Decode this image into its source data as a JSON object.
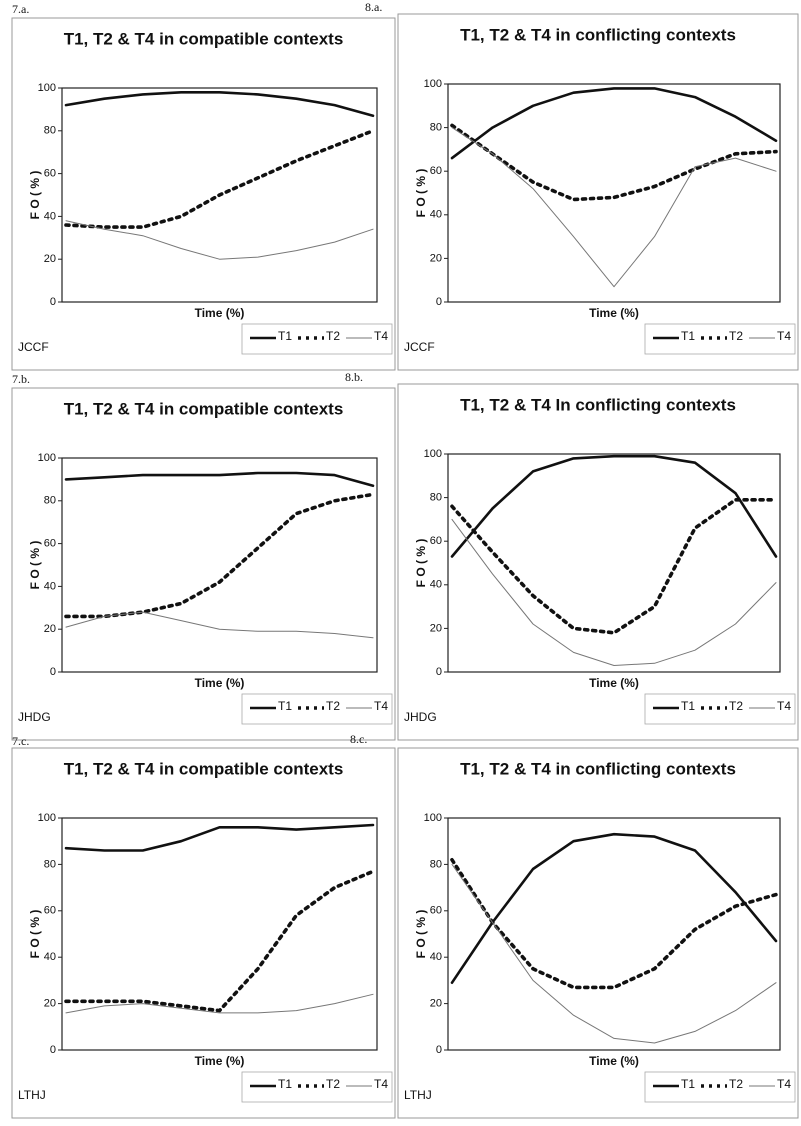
{
  "chart_data": [
    {
      "type": "line",
      "panel": "7.a.",
      "title": "T1, T2 & T4 in compatible contexts",
      "ylabel": "F O ( % )",
      "xlabel": "Time (%)",
      "annotation": "JCCF",
      "categories": [
        null,
        null,
        null,
        null,
        null,
        null,
        null,
        null,
        null
      ],
      "ylim": [
        0,
        100
      ],
      "yticks": [
        0,
        20,
        40,
        60,
        80,
        100
      ],
      "series": [
        {
          "name": "T1",
          "color": "#111111",
          "values": [
            92,
            95,
            97,
            98,
            98,
            97,
            95,
            92,
            87
          ]
        },
        {
          "name": "T2",
          "color": "#111111",
          "values": [
            36,
            35,
            35,
            40,
            50,
            58,
            66,
            73,
            80
          ]
        },
        {
          "name": "T4",
          "color": "#777777",
          "values": [
            38,
            34,
            31,
            25,
            20,
            21,
            24,
            28,
            34
          ]
        }
      ]
    },
    {
      "type": "line",
      "panel": "8.a.",
      "title": "T1, T2 & T4 in conflicting contexts",
      "ylabel": "F O ( % )",
      "xlabel": "Time (%)",
      "annotation": "JCCF",
      "categories": [
        null,
        null,
        null,
        null,
        null,
        null,
        null,
        null,
        null
      ],
      "ylim": [
        0,
        100
      ],
      "yticks": [
        0,
        20,
        40,
        60,
        80,
        100
      ],
      "series": [
        {
          "name": "T1",
          "color": "#111111",
          "values": [
            66,
            80,
            90,
            96,
            98,
            98,
            94,
            85,
            74
          ]
        },
        {
          "name": "T2",
          "color": "#111111",
          "values": [
            81,
            68,
            55,
            47,
            48,
            53,
            61,
            68,
            69
          ]
        },
        {
          "name": "T4",
          "color": "#777777",
          "values": [
            80,
            68,
            52,
            30,
            7,
            30,
            62,
            66,
            60
          ]
        }
      ]
    },
    {
      "type": "line",
      "panel": "7.b.",
      "title": "T1, T2 & T4 in compatible contexts",
      "ylabel": "F O ( % )",
      "xlabel": "Time (%)",
      "annotation": "JHDG",
      "categories": [
        null,
        null,
        null,
        null,
        null,
        null,
        null,
        null,
        null
      ],
      "ylim": [
        0,
        100
      ],
      "yticks": [
        0,
        20,
        40,
        60,
        80,
        100
      ],
      "series": [
        {
          "name": "T1",
          "color": "#111111",
          "values": [
            90,
            91,
            92,
            92,
            92,
            93,
            93,
            92,
            87
          ]
        },
        {
          "name": "T2",
          "color": "#111111",
          "values": [
            26,
            26,
            28,
            32,
            42,
            58,
            74,
            80,
            83
          ]
        },
        {
          "name": "T4",
          "color": "#777777",
          "values": [
            21,
            26,
            28,
            24,
            20,
            19,
            19,
            18,
            16
          ]
        }
      ]
    },
    {
      "type": "line",
      "panel": "8.b.",
      "title": "T1, T2 & T4 In conflicting contexts",
      "ylabel": "F O ( % )",
      "xlabel": "Time (%)",
      "annotation": "JHDG",
      "categories": [
        null,
        null,
        null,
        null,
        null,
        null,
        null,
        null,
        null
      ],
      "ylim": [
        0,
        100
      ],
      "yticks": [
        0,
        20,
        40,
        60,
        80,
        100
      ],
      "series": [
        {
          "name": "T1",
          "color": "#111111",
          "values": [
            53,
            75,
            92,
            98,
            99,
            99,
            96,
            82,
            53
          ]
        },
        {
          "name": "T2",
          "color": "#111111",
          "values": [
            76,
            55,
            35,
            20,
            18,
            30,
            66,
            79,
            79
          ]
        },
        {
          "name": "T4",
          "color": "#777777",
          "values": [
            70,
            45,
            22,
            9,
            3,
            4,
            10,
            22,
            41
          ]
        }
      ]
    },
    {
      "type": "line",
      "panel": "7.c.",
      "title": "T1, T2 & T4 in compatible contexts",
      "ylabel": "F O ( % )",
      "xlabel": "Time (%)",
      "annotation": "LTHJ",
      "categories": [
        null,
        null,
        null,
        null,
        null,
        null,
        null,
        null,
        null
      ],
      "ylim": [
        0,
        100
      ],
      "yticks": [
        0,
        20,
        40,
        60,
        80,
        100
      ],
      "series": [
        {
          "name": "T1",
          "color": "#111111",
          "values": [
            87,
            86,
            86,
            90,
            96,
            96,
            95,
            96,
            97
          ]
        },
        {
          "name": "T2",
          "color": "#111111",
          "values": [
            21,
            21,
            21,
            19,
            17,
            35,
            58,
            70,
            77
          ]
        },
        {
          "name": "T4",
          "color": "#777777",
          "values": [
            16,
            19,
            20,
            18,
            16,
            16,
            17,
            20,
            24
          ]
        }
      ]
    },
    {
      "type": "line",
      "panel": "8.c.",
      "title": "T1, T2 & T4 in conflicting contexts",
      "ylabel": "F O ( % )",
      "xlabel": "Time (%)",
      "annotation": "LTHJ",
      "categories": [
        null,
        null,
        null,
        null,
        null,
        null,
        null,
        null,
        null
      ],
      "ylim": [
        0,
        100
      ],
      "yticks": [
        0,
        20,
        40,
        60,
        80,
        100
      ],
      "series": [
        {
          "name": "T1",
          "color": "#111111",
          "values": [
            29,
            55,
            78,
            90,
            93,
            92,
            86,
            68,
            47
          ]
        },
        {
          "name": "T2",
          "color": "#111111",
          "values": [
            82,
            55,
            35,
            27,
            27,
            35,
            52,
            62,
            67
          ]
        },
        {
          "name": "T4",
          "color": "#777777",
          "values": [
            80,
            55,
            30,
            15,
            5,
            3,
            8,
            17,
            29
          ]
        }
      ]
    }
  ]
}
